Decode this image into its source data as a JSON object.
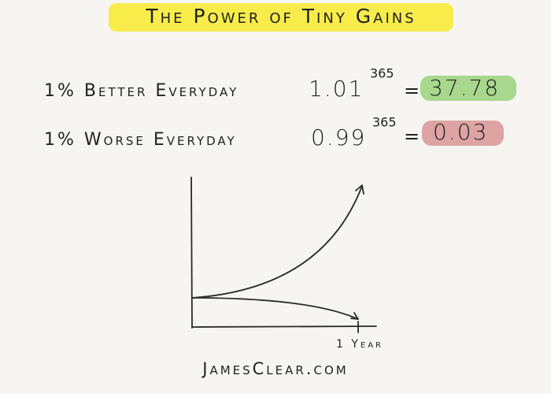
{
  "title": "The Power of Tiny Gains",
  "rows": [
    {
      "label": "1% Better Everyday",
      "base": "1.01",
      "exponent": "365",
      "equals": "=",
      "result": "37.78"
    },
    {
      "label": "1% Worse Everyday",
      "base": "0.99",
      "exponent": "365",
      "equals": "=",
      "result": "0.03"
    }
  ],
  "graph": {
    "x_label": "1 Year"
  },
  "footer": "JamesClear.com"
}
